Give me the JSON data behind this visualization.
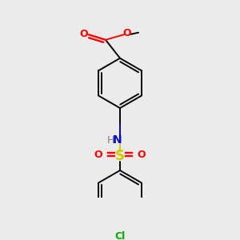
{
  "background_color": "#ebebeb",
  "colors": {
    "O": "#ff0000",
    "N": "#0000cc",
    "S": "#cccc00",
    "Cl": "#00aa00",
    "C": "#000000",
    "H": "#708090"
  },
  "figsize": [
    3.0,
    3.0
  ],
  "dpi": 100,
  "lw": 1.4,
  "lw_double": 1.4
}
